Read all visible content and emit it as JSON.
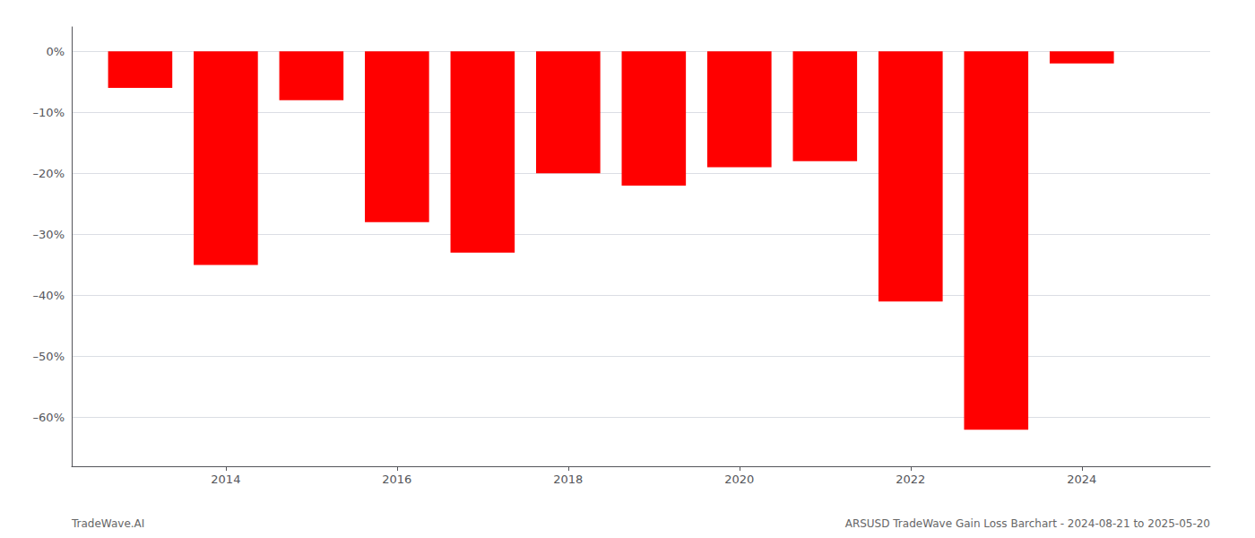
{
  "chart_data": {
    "type": "bar",
    "x": [
      2013,
      2014,
      2015,
      2016,
      2017,
      2018,
      2019,
      2020,
      2021,
      2022,
      2023,
      2024
    ],
    "values": [
      -6.0,
      -35.0,
      -8.0,
      -28.0,
      -33.0,
      -20.0,
      -22.0,
      -19.0,
      -18.0,
      -41.0,
      -62.0,
      -2.0
    ],
    "color": "#ff0000",
    "xlim": [
      2012.2,
      2025.5
    ],
    "xticks": [
      2014,
      2016,
      2018,
      2020,
      2022,
      2024
    ],
    "ylim": [
      -68,
      4
    ],
    "yticks": [
      {
        "value": 0,
        "label": "0%"
      },
      {
        "value": -10,
        "label": "–10%"
      },
      {
        "value": -20,
        "label": "–20%"
      },
      {
        "value": -30,
        "label": "–30%"
      },
      {
        "value": -40,
        "label": "–40%"
      },
      {
        "value": -50,
        "label": "–50%"
      },
      {
        "value": -60,
        "label": "–60%"
      }
    ],
    "grid": true,
    "annotations": [
      "TradeWave.AI",
      "ARSUSD TradeWave Gain Loss Barchart - 2024-08-21 to 2025-05-20"
    ]
  }
}
